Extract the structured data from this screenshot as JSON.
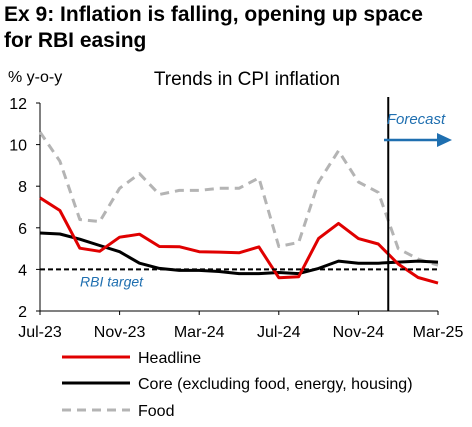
{
  "figure": {
    "title_line1": "Ex 9: Inflation is falling, opening up space",
    "title_line2": "for RBI easing"
  },
  "chart_data": {
    "type": "line",
    "title": "Trends in CPI inflation",
    "ylabel": "% y-o-y",
    "ylim": [
      2,
      12
    ],
    "yticks": [
      2,
      4,
      6,
      8,
      10,
      12
    ],
    "x": [
      "Jul-23",
      "Aug-23",
      "Sep-23",
      "Oct-23",
      "Nov-23",
      "Dec-23",
      "Jan-24",
      "Feb-24",
      "Mar-24",
      "Apr-24",
      "May-24",
      "Jun-24",
      "Jul-24",
      "Aug-24",
      "Sep-24",
      "Oct-24",
      "Nov-24",
      "Dec-24",
      "Jan-25",
      "Feb-25",
      "Mar-25"
    ],
    "xtick_labels": [
      "Jul-23",
      "Nov-23",
      "Mar-24",
      "Jul-24",
      "Nov-24",
      "Mar-25"
    ],
    "xtick_indices": [
      0,
      4,
      8,
      12,
      16,
      20
    ],
    "series": [
      {
        "name": "Headline",
        "color": "#e00000",
        "style": "solid",
        "values": [
          7.44,
          6.83,
          5.02,
          4.87,
          5.55,
          5.69,
          5.1,
          5.09,
          4.85,
          4.83,
          4.8,
          5.08,
          3.6,
          3.65,
          5.49,
          6.21,
          5.48,
          5.22,
          4.26,
          3.61,
          3.34
        ]
      },
      {
        "name": "Core (excluding food, energy, housing)",
        "color": "#000000",
        "style": "solid",
        "values": [
          5.75,
          5.7,
          5.45,
          5.15,
          4.85,
          4.3,
          4.05,
          3.95,
          3.95,
          3.9,
          3.8,
          3.8,
          3.85,
          3.8,
          4.05,
          4.4,
          4.3,
          4.3,
          4.35,
          4.4,
          4.35
        ]
      },
      {
        "name": "Food",
        "color": "#b4b4b4",
        "style": "dashed",
        "values": [
          10.6,
          9.2,
          6.4,
          6.3,
          7.9,
          8.6,
          7.6,
          7.8,
          7.8,
          7.9,
          7.9,
          8.4,
          5.1,
          5.3,
          8.2,
          9.7,
          8.2,
          7.7,
          5.0,
          4.5,
          4.2
        ]
      }
    ],
    "reference_line": {
      "label": "RBI target",
      "value": 4
    },
    "forecast": {
      "label": "Forecast",
      "start": "Jan-25"
    },
    "legend_position": "bottom",
    "grid": false
  }
}
